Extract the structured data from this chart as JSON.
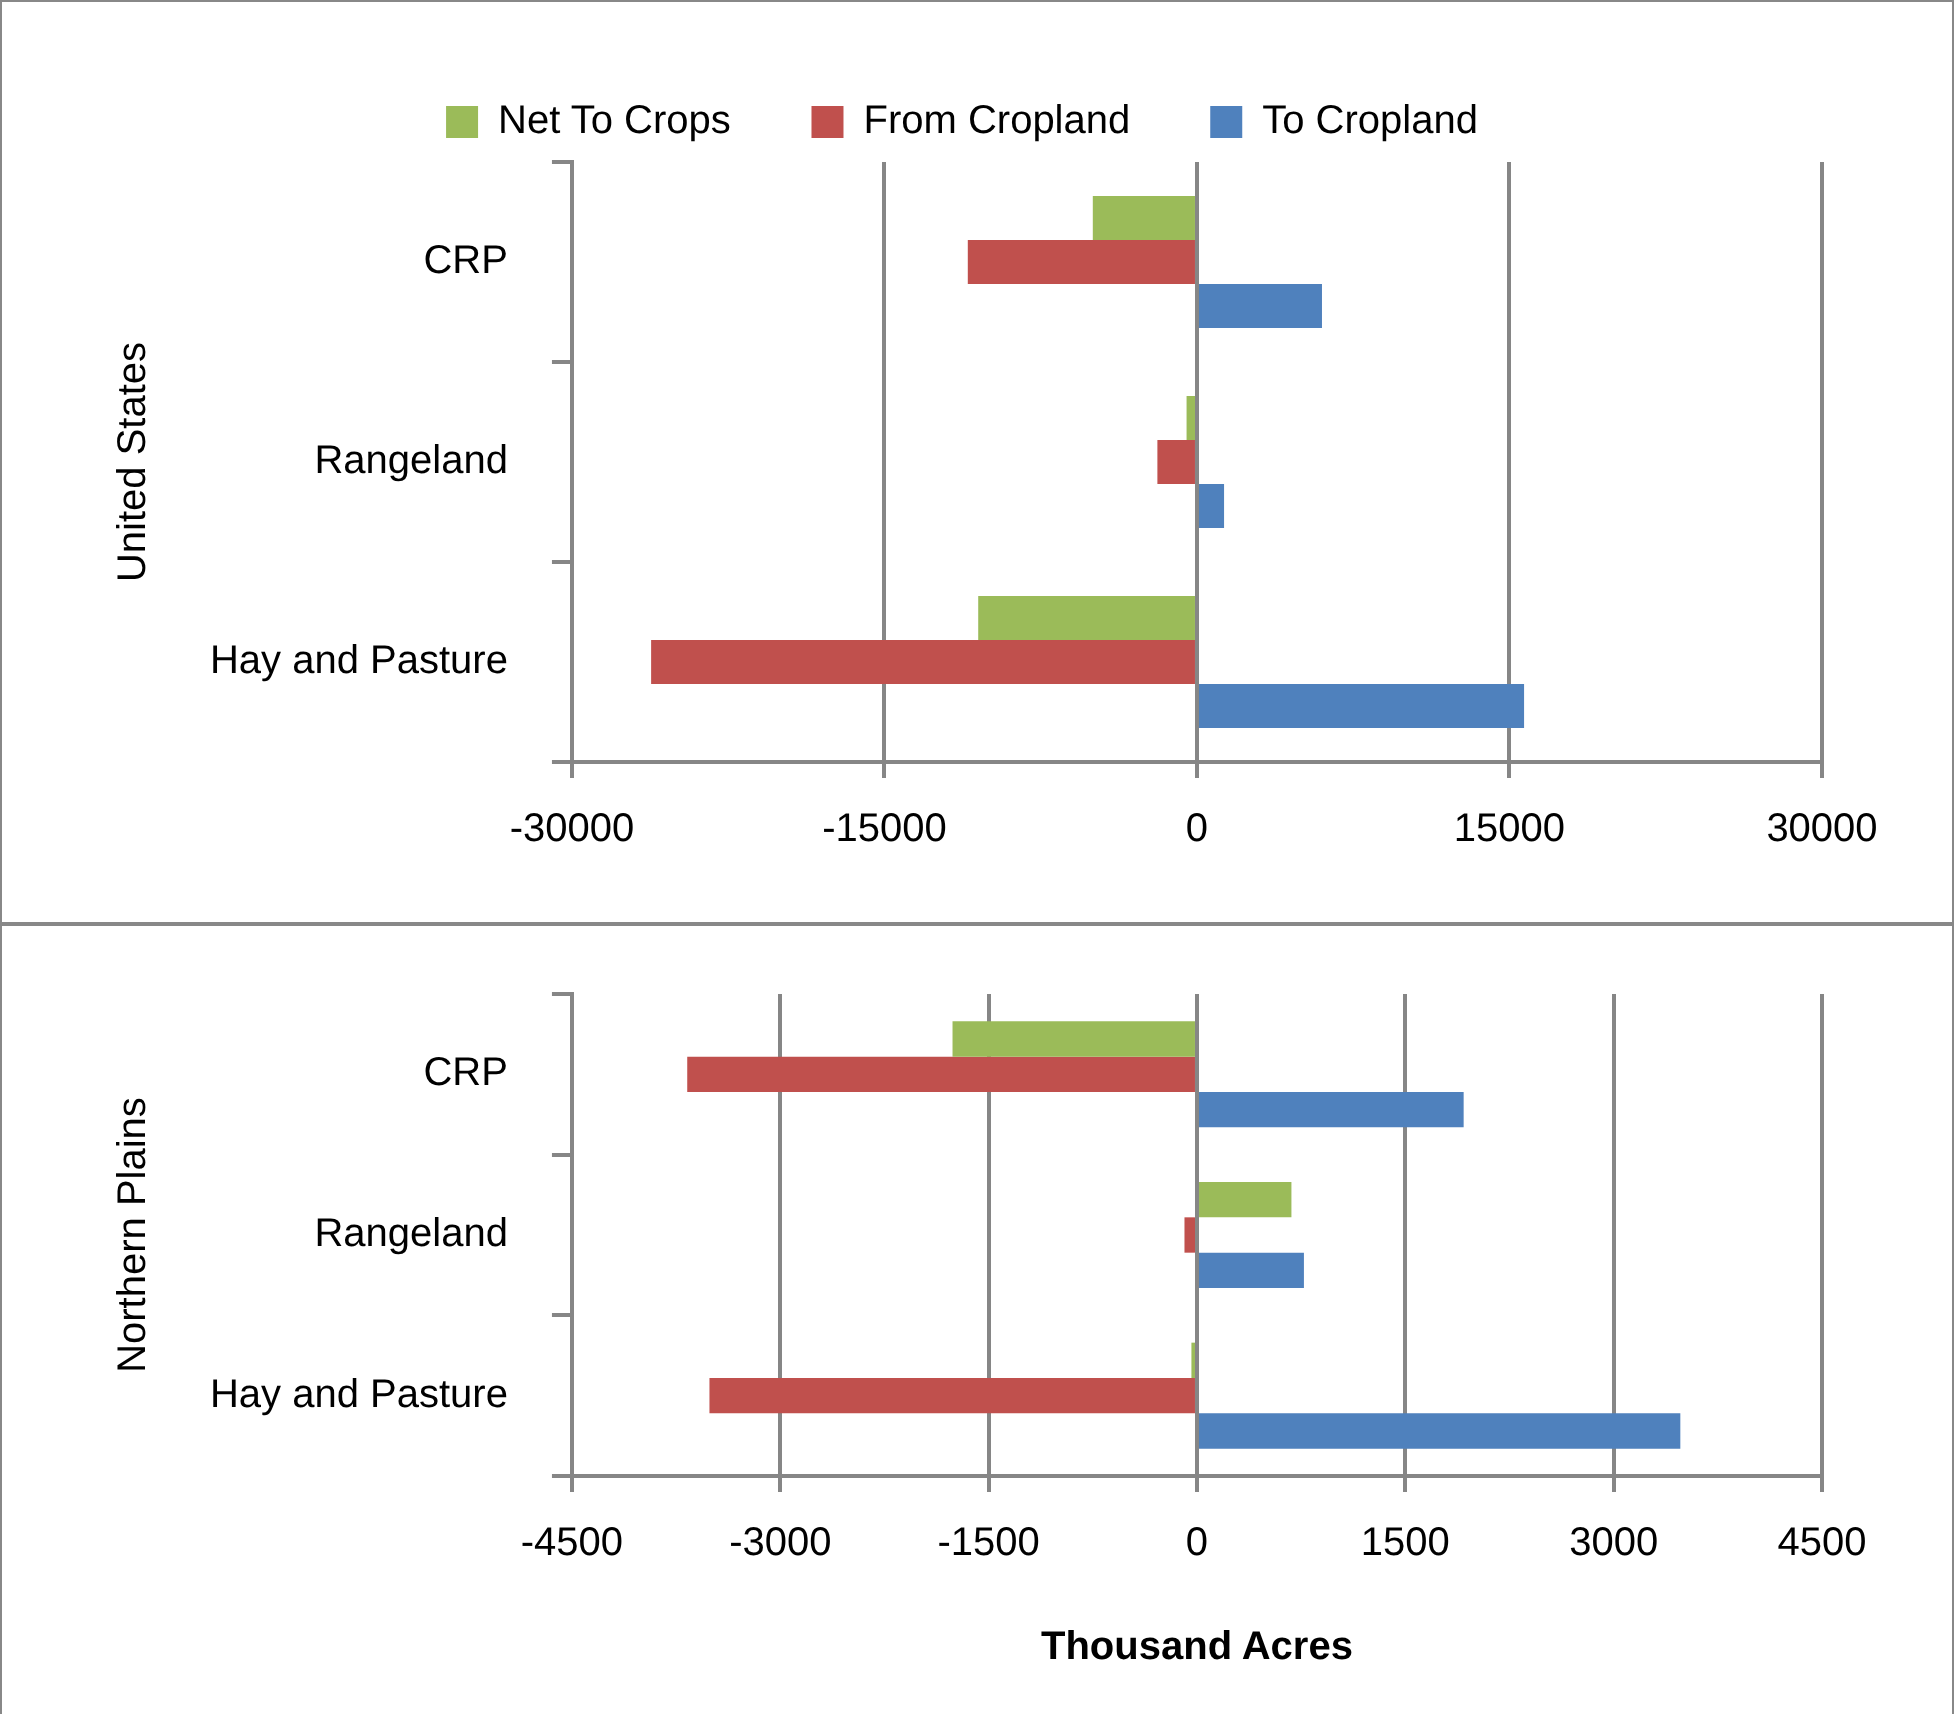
{
  "chart_data": [
    {
      "type": "bar",
      "orientation": "horizontal",
      "ylabel": "United States",
      "categories": [
        "CRP",
        "Rangeland",
        "Hay and Pasture"
      ],
      "series": [
        {
          "name": "Net To Crops",
          "color": "#9bbb59",
          "values": [
            -5000,
            -500,
            -10500
          ]
        },
        {
          "name": "From Cropland",
          "color": "#c0504d",
          "values": [
            -11000,
            -1900,
            -26200
          ]
        },
        {
          "name": "To Cropland",
          "color": "#4f81bd",
          "values": [
            6000,
            1300,
            15700
          ]
        }
      ],
      "xlim": [
        -30000,
        30000
      ],
      "xticks": [
        -30000,
        -15000,
        0,
        15000,
        30000
      ],
      "grid": "x",
      "legend": "top"
    },
    {
      "type": "bar",
      "orientation": "horizontal",
      "ylabel": "Northern Plains",
      "xlabel": "Thousand Acres",
      "categories": [
        "CRP",
        "Rangeland",
        "Hay and Pasture"
      ],
      "series": [
        {
          "color": "#9bbb59",
          "values": [
            -1760,
            680,
            -40
          ]
        },
        {
          "color": "#c0504d",
          "values": [
            -3670,
            -90,
            -3510
          ]
        },
        {
          "color": "#4f81bd",
          "values": [
            1920,
            770,
            3480
          ]
        }
      ],
      "xlim": [
        -4500,
        4500
      ],
      "xticks": [
        -4500,
        -3000,
        -1500,
        0,
        1500,
        3000,
        4500
      ],
      "grid": "x",
      "legend": false
    }
  ]
}
